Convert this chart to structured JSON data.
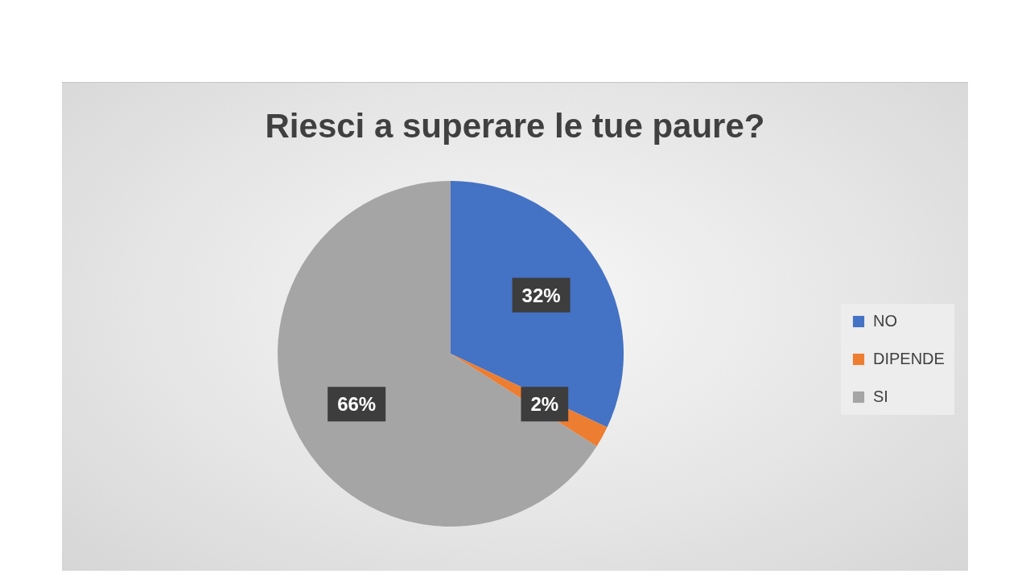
{
  "chart_data": {
    "type": "pie",
    "title": "Riesci a superare le tue paure?",
    "categories": [
      "NO",
      "DIPENDE",
      "SI"
    ],
    "values": [
      32,
      2,
      66
    ],
    "colors": [
      "#4472c4",
      "#ed7d31",
      "#a5a5a5"
    ],
    "value_labels": [
      "32%",
      "2%",
      "66%"
    ],
    "legend": "right"
  }
}
